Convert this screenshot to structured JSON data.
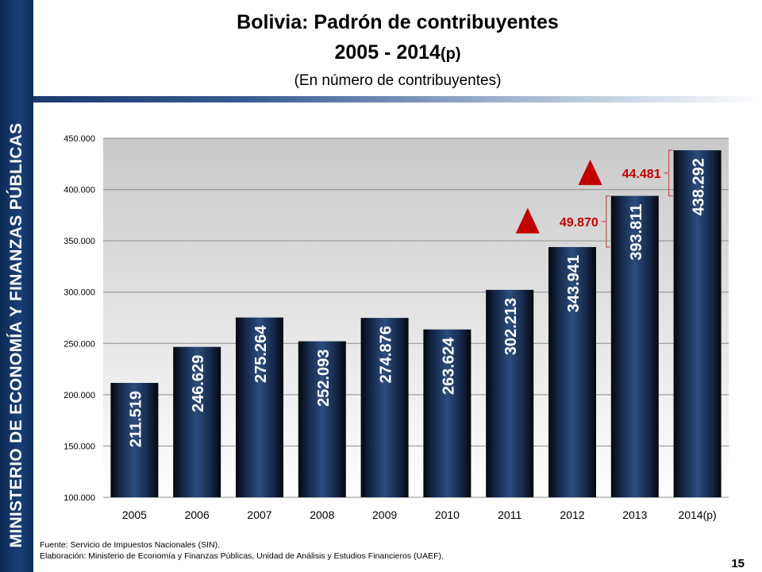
{
  "sidebar": {
    "text": "MINISTERIO DE ECONOMÍA Y FINANZAS PÚBLICAS"
  },
  "header": {
    "title_line1": "Bolivia: Padrón de contribuyentes",
    "title_line2": "2005 - 2014",
    "title_line2_suffix": "(p)",
    "subtitle": "(En número de contribuyentes)"
  },
  "chart_data": {
    "type": "bar",
    "title": "Bolivia: Padrón de contribuyentes 2005 - 2014(p)",
    "subtitle": "(En número de contribuyentes)",
    "categories": [
      "2005",
      "2006",
      "2007",
      "2008",
      "2009",
      "2010",
      "2011",
      "2012",
      "2013",
      "2014(p)"
    ],
    "values": [
      211519,
      246629,
      275264,
      252093,
      274876,
      263624,
      302213,
      343941,
      393811,
      438292
    ],
    "value_labels": [
      "211.519",
      "246.629",
      "275.264",
      "252.093",
      "274.876",
      "263.624",
      "302.213",
      "343.941",
      "393.811",
      "438.292"
    ],
    "ylim": [
      100000,
      450000
    ],
    "yticks": [
      100000,
      150000,
      200000,
      250000,
      300000,
      350000,
      400000,
      450000
    ],
    "ytick_labels": [
      "100.000",
      "150.000",
      "200.000",
      "250.000",
      "300.000",
      "350.000",
      "400.000",
      "450.000"
    ],
    "grid": true,
    "annotations": [
      {
        "text": "49.870",
        "from": "2012",
        "to": "2013"
      },
      {
        "text": "44.481",
        "from": "2013",
        "to": "2014(p)"
      }
    ],
    "colors": {
      "bar": "#1c3a66",
      "annotation": "#c00000"
    }
  },
  "footer": {
    "source": "Fuente: Servicio de Impuestos Nacionales (SIN).",
    "elaboration": "Elaboración: Ministerio de Economía y Finanzas Públicas, Unidad de Análisis y Estudios Financieros (UAEF).",
    "page_number": "15"
  }
}
